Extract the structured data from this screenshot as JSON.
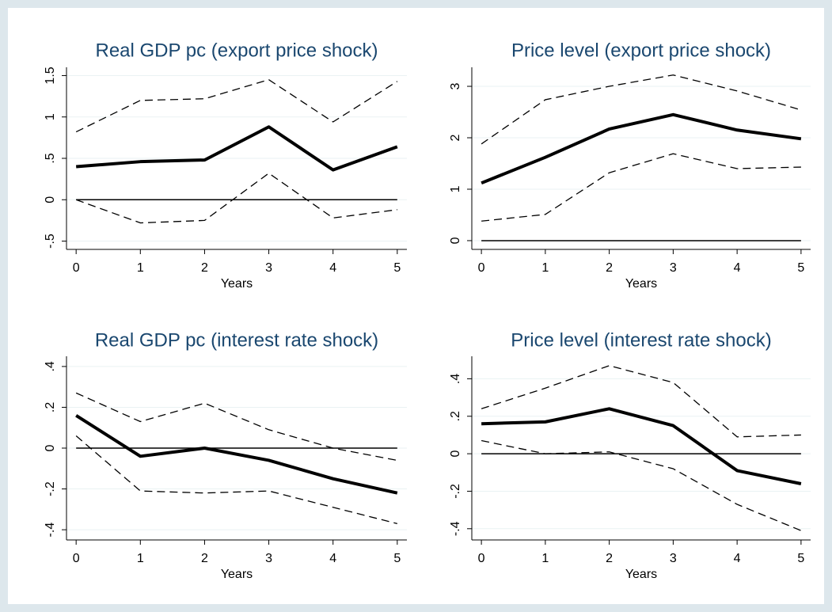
{
  "chart_data": [
    {
      "type": "line",
      "title": "Real GDP pc (export price shock)",
      "x_label": "Years",
      "x": [
        0,
        1,
        2,
        3,
        4,
        5
      ],
      "xlim": [
        -0.15,
        5.15
      ],
      "ylim": [
        -0.6,
        1.6
      ],
      "yticks": [
        {
          "value": -0.5,
          "label": "-.5"
        },
        0,
        {
          "value": 0.5,
          "label": ".5"
        },
        1,
        1.5
      ],
      "grid": true,
      "reference_line": 0,
      "series": [
        {
          "color": "#000000",
          "style": "bold",
          "values": [
            0.4,
            0.46,
            0.48,
            0.88,
            0.36,
            0.64
          ]
        },
        {
          "color": "#000000",
          "style": "dashed",
          "values": [
            0.82,
            1.2,
            1.22,
            1.45,
            0.94,
            1.43
          ]
        },
        {
          "color": "#000000",
          "style": "dashed",
          "values": [
            0.0,
            -0.28,
            -0.25,
            0.32,
            -0.22,
            -0.12
          ]
        }
      ]
    },
    {
      "type": "line",
      "title": "Price level (export price shock)",
      "x_label": "Years",
      "x": [
        0,
        1,
        2,
        3,
        4,
        5
      ],
      "xlim": [
        -0.15,
        5.15
      ],
      "ylim": [
        -0.17,
        3.37
      ],
      "yticks": [
        0,
        1,
        2,
        3
      ],
      "grid": true,
      "reference_line": 0,
      "series": [
        {
          "color": "#000000",
          "style": "bold",
          "values": [
            1.12,
            1.62,
            2.17,
            2.45,
            2.15,
            1.98
          ]
        },
        {
          "color": "#000000",
          "style": "dashed",
          "values": [
            1.88,
            2.74,
            3.0,
            3.22,
            2.91,
            2.54
          ]
        },
        {
          "color": "#000000",
          "style": "dashed",
          "values": [
            0.38,
            0.51,
            1.32,
            1.69,
            1.4,
            1.43
          ]
        }
      ]
    },
    {
      "type": "line",
      "title": "Real GDP pc (interest rate shock)",
      "x_label": "Years",
      "x": [
        0,
        1,
        2,
        3,
        4,
        5
      ],
      "xlim": [
        -0.15,
        5.15
      ],
      "ylim": [
        -0.45,
        0.45
      ],
      "yticks": [
        {
          "value": -0.4,
          "label": "-.4"
        },
        {
          "value": -0.2,
          "label": "-.2"
        },
        0,
        {
          "value": 0.2,
          "label": ".2"
        },
        {
          "value": 0.4,
          "label": ".4"
        }
      ],
      "grid": true,
      "reference_line": 0,
      "series": [
        {
          "color": "#000000",
          "style": "bold",
          "values": [
            0.16,
            -0.04,
            0.0,
            -0.06,
            -0.15,
            -0.22
          ]
        },
        {
          "color": "#000000",
          "style": "dashed",
          "values": [
            0.27,
            0.13,
            0.22,
            0.09,
            0.0,
            -0.06
          ]
        },
        {
          "color": "#000000",
          "style": "dashed",
          "values": [
            0.06,
            -0.21,
            -0.22,
            -0.21,
            -0.29,
            -0.37
          ]
        }
      ]
    },
    {
      "type": "line",
      "title": "Price level (interest rate shock)",
      "x_label": "Years",
      "x": [
        0,
        1,
        2,
        3,
        4,
        5
      ],
      "xlim": [
        -0.15,
        5.15
      ],
      "ylim": [
        -0.46,
        0.52
      ],
      "yticks": [
        {
          "value": -0.4,
          "label": "-.4"
        },
        {
          "value": -0.2,
          "label": "-.2"
        },
        0,
        {
          "value": 0.2,
          "label": ".2"
        },
        {
          "value": 0.4,
          "label": ".4"
        }
      ],
      "grid": true,
      "reference_line": 0,
      "series": [
        {
          "color": "#000000",
          "style": "bold",
          "values": [
            0.16,
            0.17,
            0.24,
            0.15,
            -0.09,
            -0.16
          ]
        },
        {
          "color": "#000000",
          "style": "dashed",
          "values": [
            0.24,
            0.35,
            0.47,
            0.38,
            0.09,
            0.1
          ]
        },
        {
          "color": "#000000",
          "style": "dashed",
          "values": [
            0.07,
            0.0,
            0.01,
            -0.08,
            -0.27,
            -0.41
          ]
        }
      ]
    }
  ]
}
